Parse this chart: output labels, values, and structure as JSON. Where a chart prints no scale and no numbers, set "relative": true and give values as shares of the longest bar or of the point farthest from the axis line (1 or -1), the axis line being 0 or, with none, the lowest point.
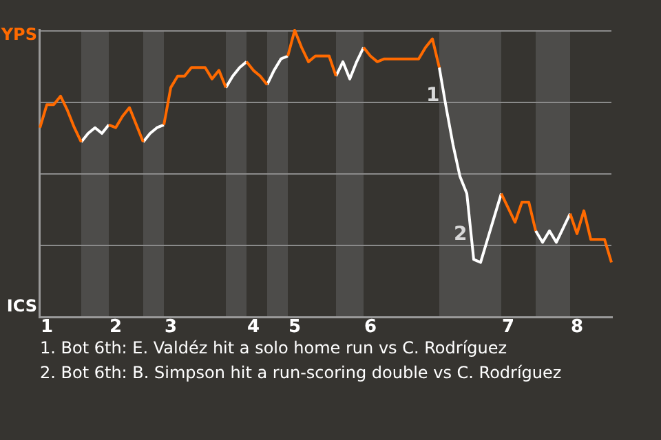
{
  "chart_data": {
    "type": "line",
    "categories": [
      null,
      "1",
      null,
      null,
      null,
      null,
      null,
      null,
      null,
      null,
      null,
      "2",
      null,
      null,
      null,
      null,
      null,
      null,
      null,
      "3",
      null,
      null,
      null,
      null,
      null,
      null,
      null,
      null,
      null,
      null,
      null,
      "4",
      null,
      null,
      null,
      null,
      null,
      "5",
      null,
      null,
      null,
      null,
      null,
      null,
      null,
      null,
      null,
      null,
      "6",
      null,
      null,
      null,
      null,
      null,
      null,
      null,
      null,
      null,
      null,
      null,
      null,
      null,
      null,
      null,
      null,
      null,
      null,
      null,
      "7",
      null,
      null,
      null,
      null,
      null,
      null,
      null,
      null,
      null,
      "8",
      null,
      null,
      null,
      null,
      null
    ],
    "relative": true,
    "series": [
      {
        "color": "#ff6a00",
        "values": [
          0.66,
          0.74,
          0.74,
          0.77,
          0.72,
          0.66,
          0.61,
          null,
          null,
          null,
          0.67,
          0.66,
          0.7,
          0.73,
          0.67,
          0.61,
          null,
          null,
          0.67,
          0.8,
          0.84,
          0.84,
          0.87,
          0.87,
          0.87,
          0.83,
          0.86,
          0.8,
          null,
          null,
          0.89,
          0.86,
          0.84,
          0.81,
          null,
          null,
          0.91,
          1,
          0.94,
          0.89,
          0.91,
          0.91,
          0.91,
          0.84,
          null,
          null,
          null,
          0.94,
          0.91,
          0.89,
          0.9,
          0.9,
          0.9,
          0.9,
          0.9,
          0.9,
          0.94,
          0.97,
          0.87,
          null,
          null,
          null,
          null,
          null,
          null,
          null,
          null,
          0.43,
          0.38,
          0.33,
          0.4,
          0.4,
          0.3,
          null,
          null,
          null,
          null,
          0.36,
          0.29,
          0.37,
          0.27,
          0.27,
          0.27,
          0.19
        ]
      },
      {
        "color": "#ffffff",
        "values": [
          null,
          null,
          null,
          null,
          null,
          null,
          0.61,
          0.64,
          0.66,
          0.64,
          0.67,
          null,
          null,
          null,
          null,
          0.61,
          0.64,
          0.66,
          0.67,
          null,
          null,
          null,
          null,
          null,
          null,
          null,
          null,
          0.8,
          0.84,
          0.87,
          0.89,
          null,
          null,
          0.81,
          0.86,
          0.9,
          0.91,
          null,
          null,
          null,
          null,
          null,
          null,
          0.84,
          0.89,
          0.83,
          0.89,
          0.94,
          null,
          null,
          null,
          null,
          null,
          null,
          null,
          null,
          null,
          null,
          0.87,
          0.73,
          0.6,
          0.49,
          0.43,
          0.2,
          0.19,
          0.27,
          0.35,
          0.43,
          null,
          null,
          null,
          null,
          0.3,
          0.26,
          0.3,
          0.26,
          0.31,
          0.36,
          null,
          null,
          null,
          null,
          null,
          null
        ]
      }
    ],
    "grid": "y",
    "legend": false,
    "marker": "none",
    "annotations": [
      "YPS",
      "ICS",
      "1",
      "2",
      "1. Bot 6th: E. Valdéz hit a solo home run vs C. Rodríguez",
      "2. Bot 6th: B. Simpson hit a run-scoring double vs C. Rodríguez"
    ]
  }
}
